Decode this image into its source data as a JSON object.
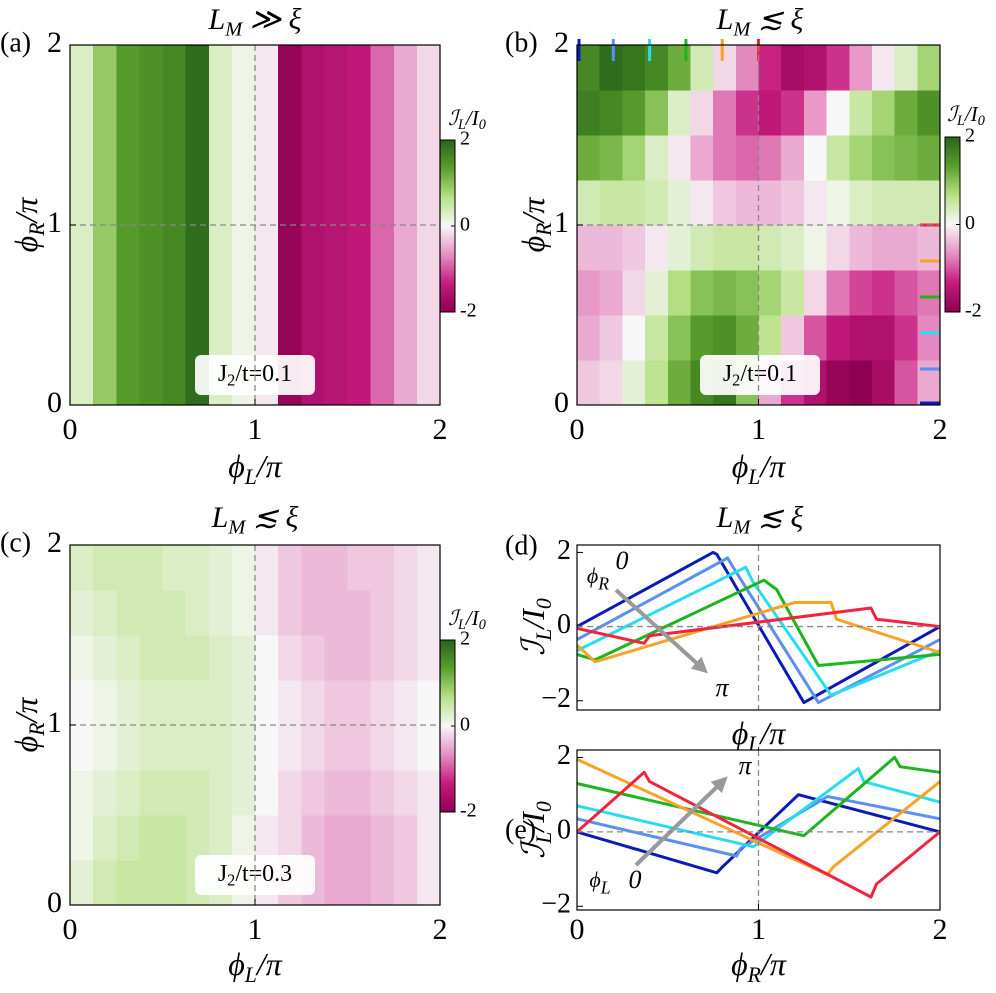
{
  "chart_data": [
    {
      "type": "heatmap",
      "panel_label": "(a)",
      "title": [
        "L",
        "M",
        " ≫ ξ"
      ],
      "xlabel": [
        "ϕ",
        "L",
        "/π"
      ],
      "ylabel": [
        "ϕ",
        "R",
        "/π"
      ],
      "xlim": [
        0,
        2
      ],
      "ylim": [
        0,
        2
      ],
      "xticks": [
        0,
        1,
        2
      ],
      "yticks": [
        0,
        1,
        2
      ],
      "zlim": [
        -2,
        2
      ],
      "colorbar_ticks": [
        -2,
        0,
        2
      ],
      "colorbar_label": [
        "ℐ",
        "L",
        "/I",
        "0"
      ],
      "colorscale": [
        "#8e0152",
        "#c51b7d",
        "#e68fc3",
        "#f7f7f7",
        "#b8e186",
        "#5aa02c",
        "#276419"
      ],
      "annotation": [
        "J",
        "2",
        "/t=0.1"
      ],
      "reference_lines": {
        "x": 1,
        "y": 1
      },
      "z": [
        [
          0.3,
          0.9,
          1.4,
          1.5,
          1.6,
          1.9,
          0.3,
          0.1,
          -0.1,
          -1.9,
          -1.6,
          -1.5,
          -1.4,
          -0.9,
          -0.5,
          -0.2
        ],
        [
          0.3,
          0.9,
          1.4,
          1.5,
          1.6,
          1.9,
          0.3,
          0.1,
          -0.1,
          -1.9,
          -1.6,
          -1.5,
          -1.4,
          -0.9,
          -0.5,
          -0.2
        ],
        [
          0.3,
          0.9,
          1.4,
          1.5,
          1.6,
          1.9,
          0.3,
          0.1,
          -0.1,
          -1.9,
          -1.6,
          -1.5,
          -1.4,
          -0.9,
          -0.5,
          -0.2
        ],
        [
          0.3,
          0.9,
          1.4,
          1.5,
          1.6,
          1.9,
          0.3,
          0.1,
          -0.1,
          -1.9,
          -1.6,
          -1.5,
          -1.4,
          -0.9,
          -0.5,
          -0.2
        ],
        [
          0.3,
          0.9,
          1.4,
          1.5,
          1.6,
          1.9,
          0.3,
          0.1,
          -0.1,
          -1.9,
          -1.6,
          -1.5,
          -1.4,
          -0.9,
          -0.5,
          -0.2
        ],
        [
          0.3,
          0.9,
          1.4,
          1.5,
          1.6,
          1.9,
          0.3,
          0.1,
          -0.1,
          -1.9,
          -1.6,
          -1.5,
          -1.4,
          -0.9,
          -0.5,
          -0.2
        ],
        [
          0.3,
          0.9,
          1.4,
          1.5,
          1.6,
          1.9,
          0.3,
          0.1,
          -0.1,
          -1.9,
          -1.6,
          -1.5,
          -1.4,
          -0.9,
          -0.5,
          -0.2
        ],
        [
          0.3,
          0.9,
          1.4,
          1.5,
          1.6,
          1.9,
          0.3,
          0.1,
          -0.1,
          -1.9,
          -1.6,
          -1.5,
          -1.4,
          -0.9,
          -0.5,
          -0.2
        ]
      ]
    },
    {
      "type": "heatmap",
      "panel_label": "(b)",
      "title": [
        "L",
        "M",
        " ≲ ξ"
      ],
      "xlabel": [
        "ϕ",
        "L",
        "/π"
      ],
      "ylabel": [
        "ϕ",
        "R",
        "/π"
      ],
      "xlim": [
        0,
        2
      ],
      "ylim": [
        0,
        2
      ],
      "xticks": [
        0,
        1,
        2
      ],
      "yticks": [
        0,
        1,
        2
      ],
      "zlim": [
        -2,
        2
      ],
      "colorbar_ticks": [
        -2,
        0,
        2
      ],
      "colorbar_label": [
        "ℐ",
        "L",
        "/I",
        "0"
      ],
      "colorscale": [
        "#8e0152",
        "#c51b7d",
        "#e68fc3",
        "#f7f7f7",
        "#b8e186",
        "#5aa02c",
        "#276419"
      ],
      "annotation": [
        "J",
        "2",
        "/t=0.1"
      ],
      "reference_lines": {
        "x": 1,
        "y": 1
      },
      "cut_positions": [
        0,
        0.2,
        0.4,
        0.6,
        0.8,
        1
      ],
      "cut_colors": [
        "#0b1ab8",
        "#5b8ff0",
        "#27dcf2",
        "#1eb41e",
        "#f6a326",
        "#f0243e"
      ],
      "z": [
        [
          -0.3,
          -0.2,
          0.2,
          0.6,
          1.2,
          1.6,
          1.8,
          1.0,
          -0.5,
          -1.2,
          -1.6,
          -1.9,
          -2.0,
          -1.7,
          -1.0,
          -0.5
        ],
        [
          -0.5,
          -0.3,
          0.0,
          0.5,
          1.0,
          1.4,
          1.5,
          1.2,
          0.6,
          -0.3,
          -1.0,
          -1.4,
          -1.6,
          -1.6,
          -1.2,
          -0.7
        ],
        [
          -0.6,
          -0.5,
          -0.2,
          0.2,
          0.7,
          1.0,
          1.1,
          1.0,
          0.8,
          0.5,
          -0.2,
          -0.8,
          -1.1,
          -1.2,
          -1.0,
          -0.8
        ],
        [
          -0.4,
          -0.4,
          -0.3,
          -0.1,
          0.2,
          0.4,
          0.5,
          0.5,
          0.4,
          0.3,
          0.1,
          -0.2,
          -0.4,
          -0.5,
          -0.5,
          -0.4
        ],
        [
          0.4,
          0.5,
          0.5,
          0.4,
          0.2,
          -0.1,
          -0.3,
          -0.4,
          -0.4,
          -0.3,
          -0.1,
          0.1,
          0.3,
          0.4,
          0.4,
          0.4
        ],
        [
          1.2,
          1.1,
          0.8,
          0.3,
          -0.1,
          -0.5,
          -0.8,
          -0.9,
          -0.8,
          -0.5,
          0.0,
          0.5,
          0.8,
          1.0,
          1.1,
          1.2
        ],
        [
          1.7,
          1.6,
          1.4,
          1.0,
          0.3,
          -0.2,
          -0.8,
          -1.2,
          -1.4,
          -1.2,
          -0.6,
          0.0,
          0.5,
          0.8,
          1.2,
          1.5
        ],
        [
          1.6,
          1.9,
          1.8,
          1.6,
          1.2,
          0.4,
          -0.2,
          -0.7,
          -1.3,
          -1.7,
          -1.6,
          -1.2,
          -0.6,
          -0.1,
          0.3,
          0.8
        ]
      ]
    },
    {
      "type": "heatmap",
      "panel_label": "(c)",
      "title": [
        "L",
        "M",
        " ≲ ξ"
      ],
      "xlabel": [
        "ϕ",
        "L",
        "/π"
      ],
      "ylabel": [
        "ϕ",
        "R",
        "/π"
      ],
      "xlim": [
        0,
        2
      ],
      "ylim": [
        0,
        2
      ],
      "xticks": [
        0,
        1,
        2
      ],
      "yticks": [
        0,
        1,
        2
      ],
      "zlim": [
        -2,
        2
      ],
      "colorbar_ticks": [
        -2,
        0,
        2
      ],
      "colorbar_label": [
        "ℐ",
        "L",
        "/I",
        "0"
      ],
      "colorscale": [
        "#8e0152",
        "#c51b7d",
        "#e68fc3",
        "#f7f7f7",
        "#b8e186",
        "#5aa02c",
        "#276419"
      ],
      "annotation": [
        "J",
        "2",
        "/t=0.3"
      ],
      "reference_lines": {
        "x": 1,
        "y": 1
      },
      "z": [
        [
          0.2,
          0.4,
          0.5,
          0.5,
          0.5,
          0.4,
          0.3,
          0.1,
          -0.1,
          -0.3,
          -0.4,
          -0.5,
          -0.5,
          -0.4,
          -0.3,
          -0.1
        ],
        [
          0.1,
          0.3,
          0.4,
          0.5,
          0.5,
          0.4,
          0.3,
          0.1,
          -0.1,
          -0.2,
          -0.4,
          -0.5,
          -0.5,
          -0.4,
          -0.3,
          -0.1
        ],
        [
          0.1,
          0.2,
          0.3,
          0.4,
          0.4,
          0.4,
          0.3,
          0.2,
          0.0,
          -0.2,
          -0.3,
          -0.4,
          -0.4,
          -0.3,
          -0.2,
          -0.1
        ],
        [
          0.0,
          0.1,
          0.2,
          0.3,
          0.3,
          0.3,
          0.3,
          0.2,
          0.0,
          -0.1,
          -0.2,
          -0.3,
          -0.3,
          -0.2,
          -0.1,
          0.0
        ],
        [
          0.0,
          0.1,
          0.2,
          0.3,
          0.3,
          0.3,
          0.3,
          0.2,
          0.0,
          -0.1,
          -0.2,
          -0.3,
          -0.3,
          -0.2,
          -0.1,
          0.0
        ],
        [
          0.1,
          0.2,
          0.3,
          0.4,
          0.4,
          0.4,
          0.3,
          0.2,
          0.0,
          -0.2,
          -0.3,
          -0.4,
          -0.4,
          -0.3,
          -0.2,
          -0.1
        ],
        [
          0.2,
          0.3,
          0.4,
          0.4,
          0.4,
          0.3,
          0.2,
          0.1,
          -0.1,
          -0.3,
          -0.4,
          -0.4,
          -0.4,
          -0.3,
          -0.2,
          -0.1
        ],
        [
          0.3,
          0.4,
          0.4,
          0.4,
          0.3,
          0.3,
          0.2,
          0.1,
          -0.1,
          -0.3,
          -0.4,
          -0.4,
          -0.3,
          -0.3,
          -0.2,
          -0.1
        ]
      ]
    },
    {
      "type": "line",
      "panel_label": "(d)",
      "title": [
        "L",
        "M",
        " ≲ ξ"
      ],
      "xlabel": [
        "ϕ",
        "L",
        "/π"
      ],
      "ylabel": [
        "ℐ",
        "L",
        "/I",
        "0"
      ],
      "xlim": [
        0,
        2
      ],
      "ylim": [
        -2.25,
        2.2
      ],
      "yticks": [
        {
          "value": -2,
          "label": "−2"
        },
        0,
        2
      ],
      "reference_lines": {
        "x": 1,
        "y": 0
      },
      "annotations": [
        [
          "ϕ",
          "R"
        ],
        [
          "0"
        ],
        [
          "π"
        ]
      ],
      "annotation_colors": [
        "#000000",
        "#0b1ab8",
        "#f0243e"
      ],
      "series": [
        {
          "color": "#0b1ab8",
          "x": [
            0,
            0.75,
            0.77,
            1.25,
            2
          ],
          "values": [
            0,
            2.0,
            1.95,
            -2.05,
            0
          ]
        },
        {
          "color": "#5b8ff0",
          "x": [
            0,
            0.83,
            0.86,
            1.33,
            2
          ],
          "values": [
            -0.35,
            1.85,
            1.6,
            -2.05,
            -0.35
          ]
        },
        {
          "color": "#27dcf2",
          "x": [
            0,
            0.93,
            0.97,
            1.4,
            2
          ],
          "values": [
            -0.65,
            1.6,
            1.2,
            -1.85,
            -0.65
          ]
        },
        {
          "color": "#1eb41e",
          "x": [
            0,
            0.1,
            1.03,
            1.1,
            1.33,
            2
          ],
          "values": [
            -0.75,
            -0.9,
            1.25,
            1.0,
            -1.05,
            -0.75
          ]
        },
        {
          "color": "#f6a326",
          "x": [
            0,
            0.1,
            1.2,
            1.4,
            1.43,
            2
          ],
          "values": [
            -0.5,
            -0.95,
            0.65,
            0.65,
            0.2,
            -0.7
          ]
        },
        {
          "color": "#f0243e",
          "x": [
            0,
            0.37,
            0.4,
            1.62,
            1.65,
            2
          ],
          "values": [
            -0.05,
            -0.45,
            -0.25,
            0.5,
            0.2,
            0
          ]
        }
      ]
    },
    {
      "type": "line",
      "panel_label": "(e)",
      "xlabel": [
        "ϕ",
        "R",
        "/π"
      ],
      "ylabel": [
        "ℐ",
        "L",
        "/I",
        "0"
      ],
      "xlim": [
        0,
        2
      ],
      "ylim": [
        -2.1,
        2.2
      ],
      "xticks": [
        0,
        1,
        2
      ],
      "yticks": [
        {
          "value": -2,
          "label": "−2"
        },
        0,
        2
      ],
      "reference_lines": {
        "x": 1,
        "y": 0
      },
      "annotations": [
        [
          "ϕ",
          "L"
        ],
        [
          "0"
        ],
        [
          "π"
        ]
      ],
      "annotation_colors": [
        "#000000",
        "#0b1ab8",
        "#f0243e"
      ],
      "series": [
        {
          "color": "#0b1ab8",
          "x": [
            0,
            0.77,
            0.8,
            1.22,
            2
          ],
          "values": [
            0,
            -1.1,
            -0.95,
            1.0,
            0
          ]
        },
        {
          "color": "#5b8ff0",
          "x": [
            0,
            0.88,
            0.9,
            1.38,
            2
          ],
          "values": [
            0.35,
            -0.65,
            -0.45,
            0.95,
            0.35
          ]
        },
        {
          "color": "#27dcf2",
          "x": [
            0,
            0.97,
            1.0,
            1.55,
            1.58,
            2
          ],
          "values": [
            0.7,
            -0.4,
            -0.3,
            1.7,
            1.35,
            0.8
          ]
        },
        {
          "color": "#1eb41e",
          "x": [
            0,
            1.2,
            1.25,
            1.75,
            1.78,
            2
          ],
          "values": [
            1.3,
            -0.05,
            -0.1,
            2.0,
            1.75,
            1.6
          ]
        },
        {
          "color": "#f6a326",
          "x": [
            0,
            1.38,
            1.41,
            2
          ],
          "values": [
            1.95,
            -1.15,
            -0.95,
            1.35
          ]
        },
        {
          "color": "#f0243e",
          "x": [
            0,
            0.37,
            0.4,
            1.62,
            1.65,
            2
          ],
          "values": [
            0,
            1.6,
            1.35,
            -1.75,
            -1.4,
            0
          ]
        }
      ]
    }
  ]
}
